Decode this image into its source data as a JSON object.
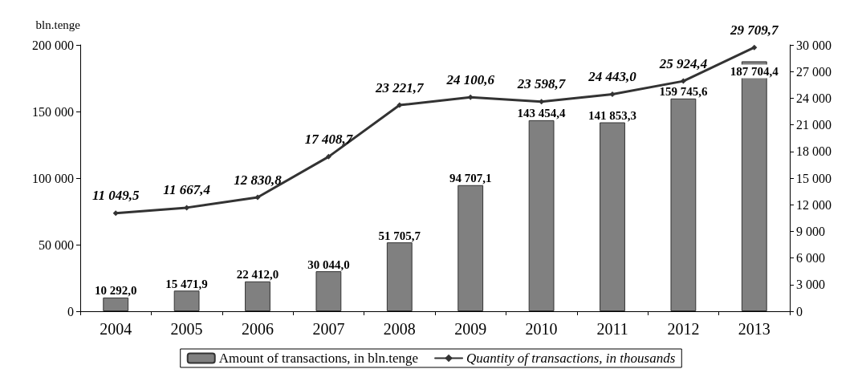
{
  "chart_data": {
    "type": "bar",
    "ylabel": "bln.tenge",
    "categories": [
      "2004",
      "2005",
      "2006",
      "2007",
      "2008",
      "2009",
      "2010",
      "2011",
      "2012",
      "2013"
    ],
    "series": [
      {
        "name": "Amount of transactions, in bln.tenge",
        "type": "bar",
        "color": "#808080",
        "values": [
          10292.0,
          15471.9,
          22412.0,
          30044.0,
          51705.7,
          94707.1,
          143454.4,
          141853.3,
          159745.6,
          187704.4
        ],
        "value_labels": [
          "10 292,0",
          "15 471,9",
          "22 412,0",
          "30 044,0",
          "51 705,7",
          "94 707,1",
          "143 454,4",
          "141 853,3",
          "159 745,6",
          "187 704,4"
        ]
      },
      {
        "name": "Quantity of transactions, in thousands",
        "type": "line",
        "axis": "y2",
        "color": "#333333",
        "values": [
          11049.5,
          11667.4,
          12830.8,
          17408.7,
          23221.7,
          24100.6,
          23598.7,
          24443.0,
          25924.4,
          29709.7
        ],
        "value_labels": [
          "11 049,5",
          "11 667,4",
          "12 830,8",
          "17 408,7",
          "23 221,7",
          "24 100,6",
          "23 598,7",
          "24 443,0",
          "25 924,4",
          "29 709,7"
        ]
      }
    ],
    "ylim": [
      0,
      200000
    ],
    "yticks": [
      {
        "value": 0,
        "label": "0"
      },
      {
        "value": 50000,
        "label": "50 000"
      },
      {
        "value": 100000,
        "label": "100 000"
      },
      {
        "value": 150000,
        "label": "150 000"
      },
      {
        "value": 200000,
        "label": "200 000"
      }
    ],
    "y2lim": [
      0,
      30000
    ],
    "y2ticks": [
      {
        "value": 0,
        "label": "0"
      },
      {
        "value": 3000,
        "label": "3 000"
      },
      {
        "value": 6000,
        "label": "6 000"
      },
      {
        "value": 9000,
        "label": "9 000"
      },
      {
        "value": 12000,
        "label": "12 000"
      },
      {
        "value": 15000,
        "label": "15 000"
      },
      {
        "value": 18000,
        "label": "18 000"
      },
      {
        "value": 21000,
        "label": "21 000"
      },
      {
        "value": 24000,
        "label": "24 000"
      },
      {
        "value": 27000,
        "label": "27 000"
      },
      {
        "value": 30000,
        "label": "30 000"
      }
    ],
    "grid": false,
    "legend": "bottom",
    "marker": "diamond",
    "line_style": "solid"
  }
}
